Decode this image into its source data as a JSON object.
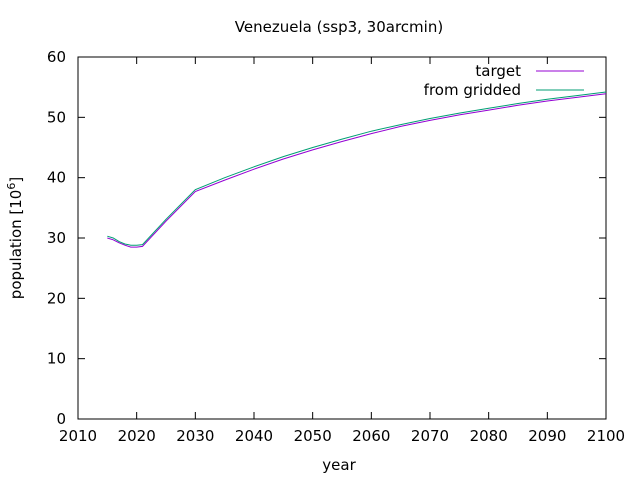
{
  "chart_data": {
    "type": "line",
    "title": "Venezuela (ssp3, 30arcmin)",
    "xlabel": "year",
    "ylabel_main": "population [10",
    "ylabel_sup": "6",
    "ylabel_tail": "]",
    "xlim": [
      2010,
      2100
    ],
    "ylim": [
      0,
      60
    ],
    "xticks": [
      2010,
      2020,
      2030,
      2040,
      2050,
      2060,
      2070,
      2080,
      2090,
      2100
    ],
    "yticks": [
      0,
      10,
      20,
      30,
      40,
      50,
      60
    ],
    "grid": false,
    "legend_position": "top-right",
    "series": [
      {
        "name": "target",
        "color": "#9400d3",
        "x": [
          2015,
          2016,
          2017,
          2018,
          2019,
          2020,
          2021,
          2025,
          2030,
          2035,
          2040,
          2045,
          2050,
          2055,
          2060,
          2065,
          2070,
          2075,
          2080,
          2085,
          2090,
          2095,
          2100
        ],
        "y": [
          30.0,
          29.7,
          29.2,
          28.8,
          28.5,
          28.5,
          28.6,
          32.8,
          37.7,
          39.6,
          41.4,
          43.1,
          44.6,
          46.0,
          47.3,
          48.5,
          49.5,
          50.4,
          51.2,
          52.0,
          52.7,
          53.3,
          53.9
        ]
      },
      {
        "name": "from gridded",
        "color": "#009e73",
        "x": [
          2015,
          2016,
          2017,
          2018,
          2019,
          2020,
          2021,
          2025,
          2030,
          2035,
          2040,
          2045,
          2050,
          2055,
          2060,
          2065,
          2070,
          2075,
          2080,
          2085,
          2090,
          2095,
          2100
        ],
        "y": [
          30.3,
          30.0,
          29.4,
          29.0,
          28.8,
          28.8,
          28.9,
          33.1,
          38.0,
          40.0,
          41.8,
          43.5,
          45.0,
          46.4,
          47.7,
          48.8,
          49.8,
          50.7,
          51.5,
          52.3,
          53.0,
          53.6,
          54.2
        ]
      }
    ]
  }
}
